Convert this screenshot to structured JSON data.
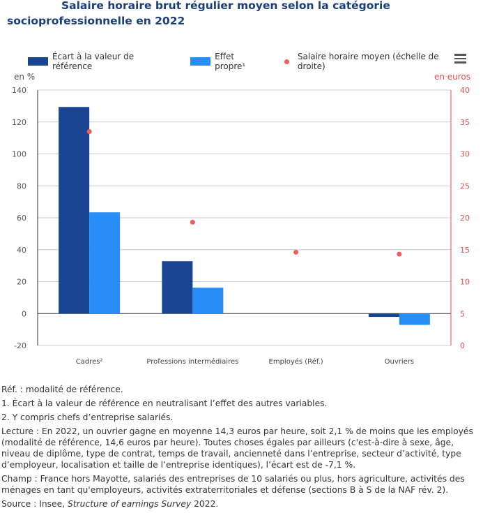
{
  "chart_data": {
    "type": "bar",
    "title": "Salaire horaire brut régulier moyen selon la catégorie socioprofessionnelle en 2022",
    "categories": [
      "Cadres²",
      "Professions intermédiaires",
      "Employés (Réf.)",
      "Ouvriers"
    ],
    "series": [
      {
        "name": "Écart à la valeur de référence",
        "type": "bar",
        "axis": "left",
        "color": "#1a4592",
        "values": [
          129.4,
          32.8,
          null,
          -2.1
        ]
      },
      {
        "name": "Effet propre¹",
        "type": "bar",
        "axis": "left",
        "color": "#268ef6",
        "values": [
          63.4,
          16.2,
          null,
          -7.1
        ]
      },
      {
        "name": "Salaire horaire moyen (échelle de droite)",
        "type": "scatter",
        "axis": "right",
        "color": "#f45b5b",
        "values": [
          33.5,
          19.3,
          14.6,
          14.3
        ]
      }
    ],
    "ylabel": "en %",
    "ylim": [
      -20,
      140
    ],
    "yticks": [
      -20,
      0,
      20,
      40,
      60,
      80,
      100,
      120,
      140
    ],
    "y2label": "en euros",
    "y2lim": [
      0,
      40
    ],
    "y2ticks": [
      0,
      5,
      10,
      15,
      20,
      25,
      30,
      35,
      40
    ],
    "grid": true,
    "legend": "top"
  },
  "notes": [
    "Réf. : modalité de référence.",
    "1. Écart à la valeur de référence en neutralisant l’effet des autres variables.",
    "2. Y compris chefs d’entreprise salariés.",
    "Lecture : En 2022, un ouvrier gagne en moyenne 14,3 euros par heure, soit 2,1 % de moins que les employés (modalité de référence, 14,6 euros par heure). Toutes choses égales par ailleurs (c'est-à-dire à sexe, âge, niveau de diplôme, type de contrat, temps de travail, ancienneté dans l’entreprise, secteur d’activité, type d’employeur, localisation et taille de l’entreprise identiques), l’écart est de -7,1 %.",
    "Champ : France hors Mayotte, salariés des entreprises de 10 salariés ou plus, hors agriculture, activités des ménages en tant qu'employeurs, activités extraterritoriales et défense (sections B à S de la NAF rév. 2)."
  ],
  "source": {
    "prefix": "Source : Insee, ",
    "italic": "Structure of earnings Survey",
    "suffix": " 2022."
  }
}
